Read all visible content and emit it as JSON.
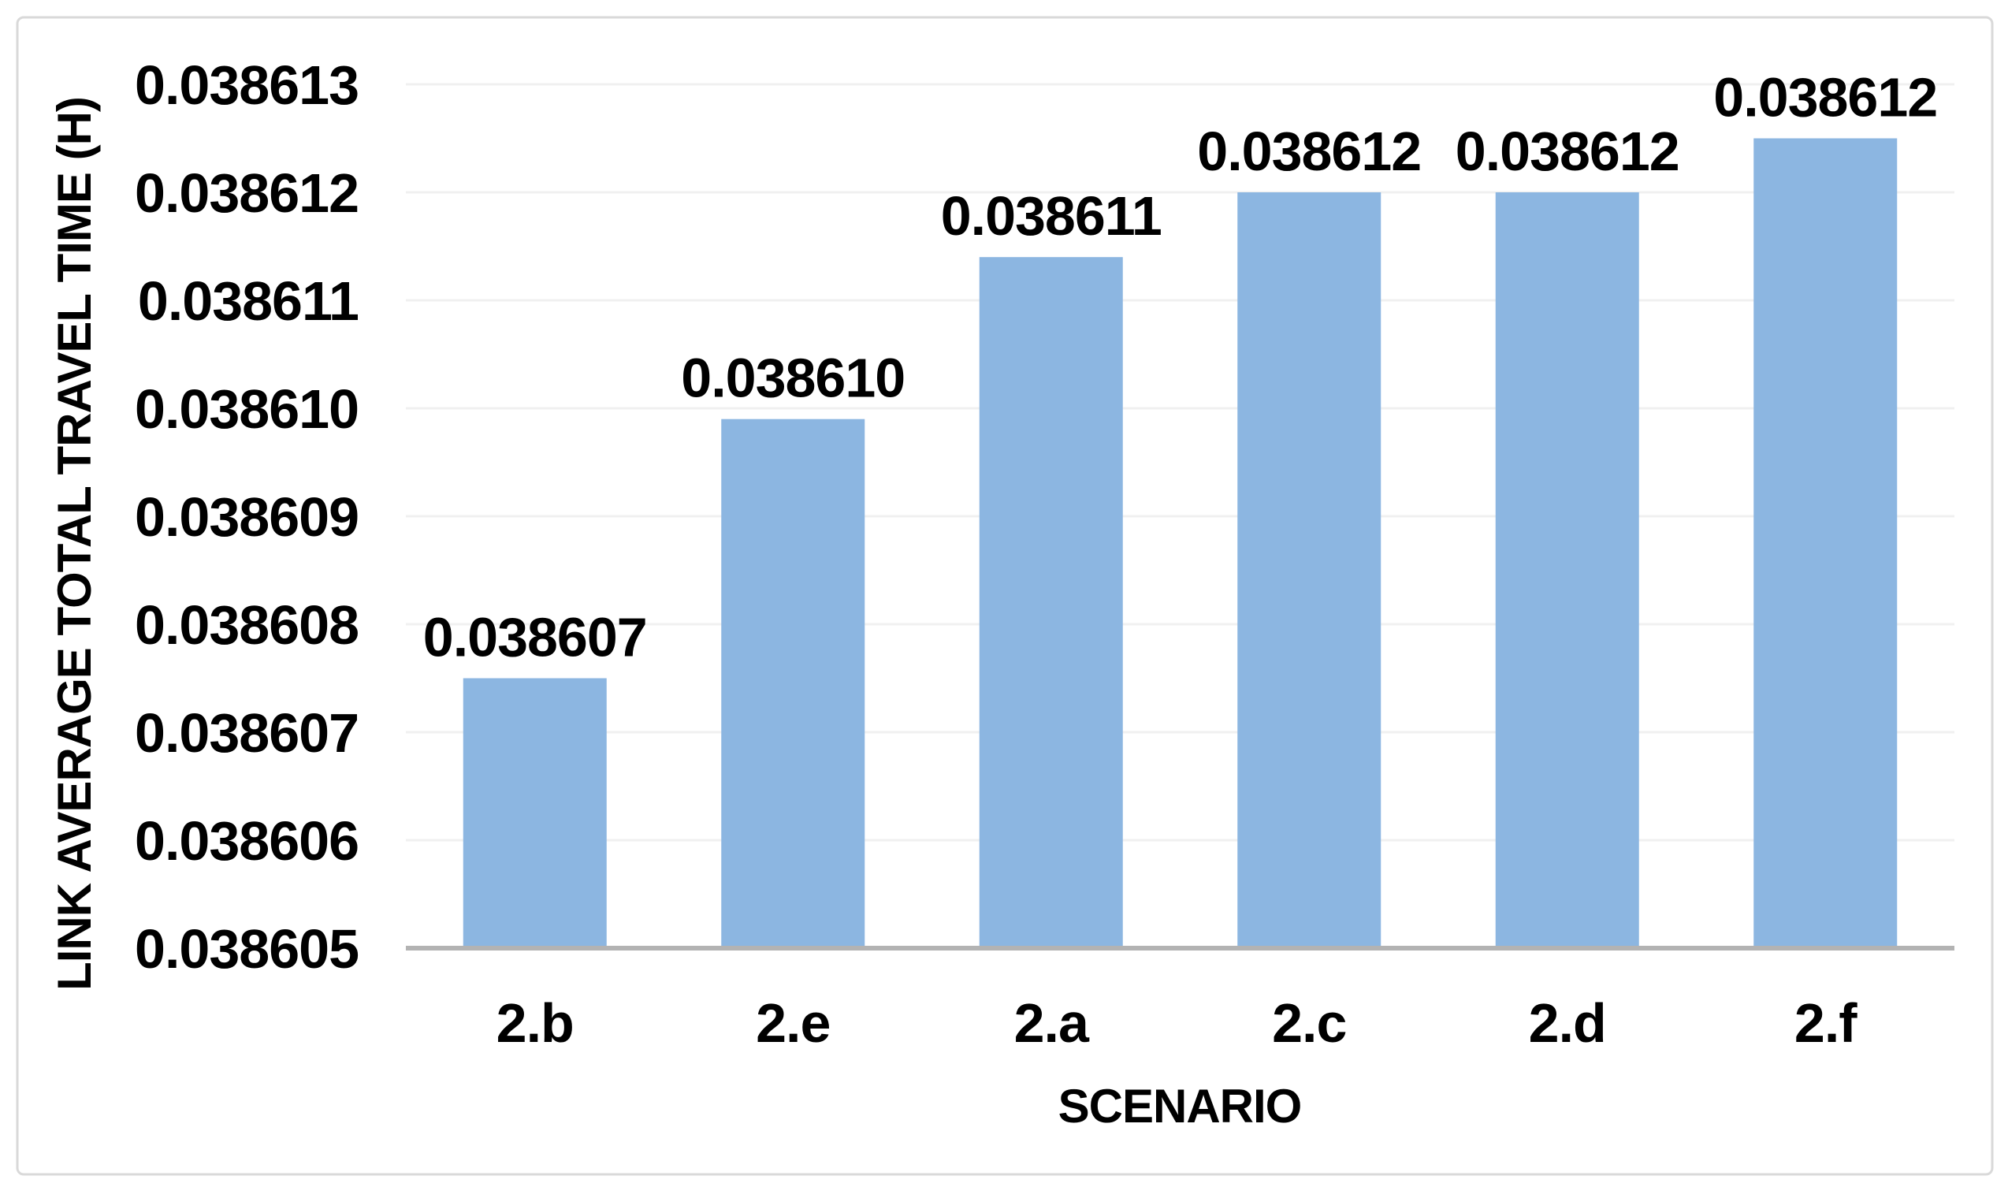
{
  "chart_data": {
    "type": "bar",
    "title": "",
    "xlabel": "SCENARIO",
    "ylabel": "LINK AVERAGE TOTAL TRAVEL TIME (H)",
    "categories": [
      "2.b",
      "2.e",
      "2.a",
      "2.c",
      "2.d",
      "2.f"
    ],
    "values": [
      0.038607,
      0.03861,
      0.038611,
      0.038612,
      0.038612,
      0.038612
    ],
    "value_labels": [
      "0.038607",
      "0.038610",
      "0.038611",
      "0.038612",
      "0.038612",
      "0.038612"
    ],
    "bar_tops_estimated": [
      0.0386075,
      0.0386099,
      0.0386114,
      0.038612,
      0.038612,
      0.0386125
    ],
    "ylim": [
      0.038605,
      0.038613
    ],
    "ytick_step": 1e-06,
    "ytick_labels": [
      "0.038605",
      "0.038606",
      "0.038607",
      "0.038608",
      "0.038609",
      "0.038610",
      "0.038611",
      "0.038612",
      "0.038613"
    ],
    "grid": true,
    "legend": false,
    "colors": {
      "bar_fill": "#8CB6E1",
      "gridline": "#F0F0F0",
      "axis_line": "#B3B3B3",
      "frame_border": "#D9D9D9",
      "background": "#FFFFFF",
      "text": "#000000"
    }
  }
}
